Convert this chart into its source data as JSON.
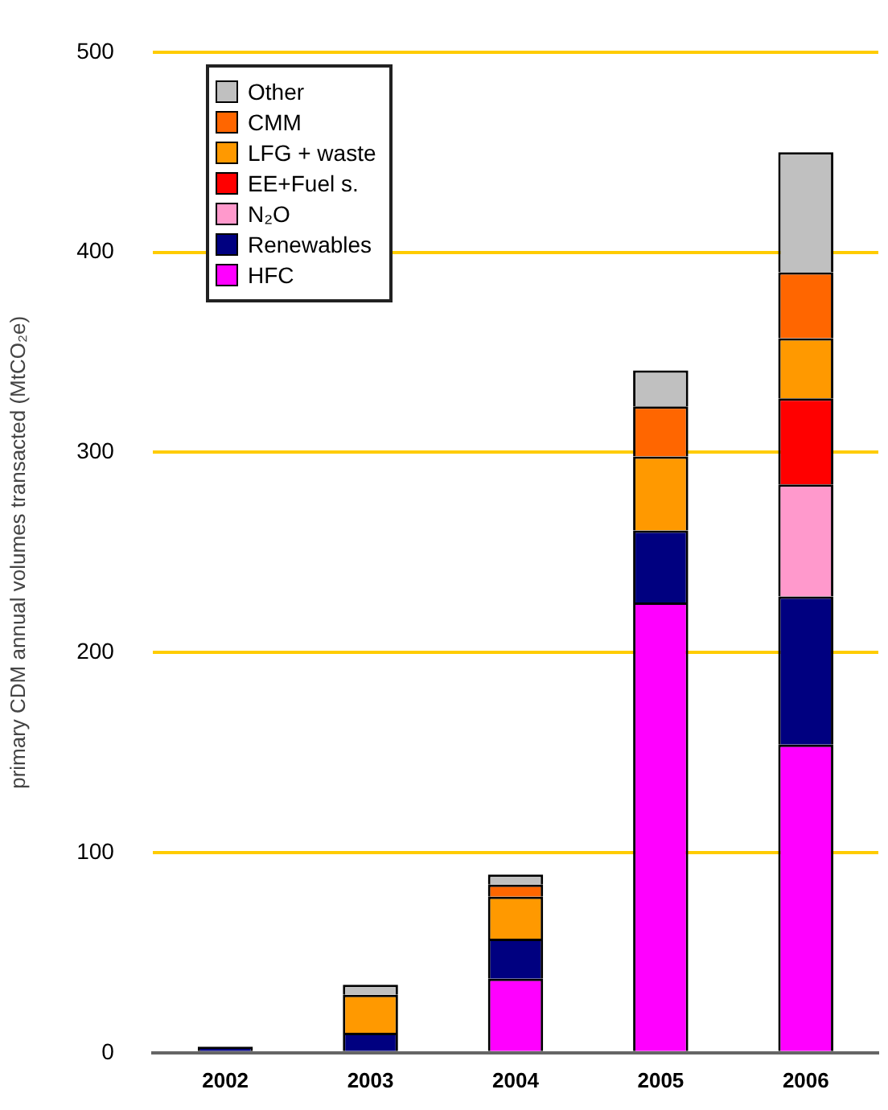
{
  "chart_data": {
    "type": "bar",
    "stacked": true,
    "ylabel": "primary CDM annual volumes transacted (MtCO₂e)",
    "categories": [
      "2002",
      "2003",
      "2004",
      "2005",
      "2006"
    ],
    "series": [
      {
        "name": "HFC",
        "color": "#ff00ff",
        "values": [
          0,
          0,
          37,
          225,
          154
        ]
      },
      {
        "name": "Renewables",
        "color": "#000080",
        "values": [
          3,
          10,
          20,
          36,
          74
        ]
      },
      {
        "name": "N₂O",
        "color": "#ff99cc",
        "values": [
          0,
          0,
          0,
          0,
          56
        ]
      },
      {
        "name": "EE+Fuel s.",
        "color": "#ff0000",
        "values": [
          0,
          0,
          0,
          0,
          43
        ]
      },
      {
        "name": "LFG + waste",
        "color": "#ff9900",
        "values": [
          0,
          19,
          21,
          37,
          30
        ]
      },
      {
        "name": "CMM",
        "color": "#ff6600",
        "values": [
          0,
          0,
          6,
          25,
          33
        ]
      },
      {
        "name": "Other",
        "color": "#c0c0c0",
        "values": [
          0,
          5,
          5,
          18,
          60
        ]
      }
    ],
    "ylim": [
      0,
      500
    ],
    "yticks": [
      0,
      100,
      200,
      300,
      400,
      500
    ],
    "grid": "y",
    "legend": "top left"
  }
}
